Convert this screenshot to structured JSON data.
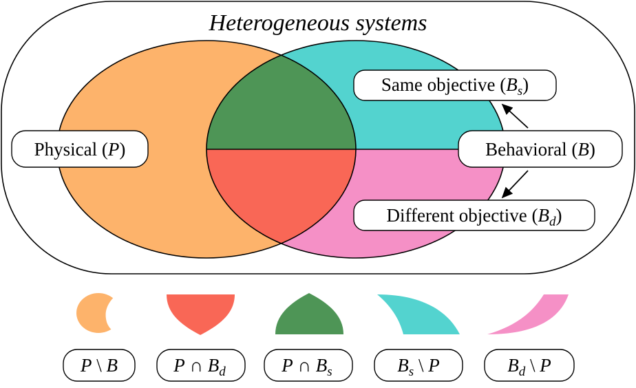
{
  "title": "Heterogeneous systems",
  "labels": {
    "physical": "Physical (",
    "physical_sym": "P",
    "physical_close": ")",
    "behavioral": "Behavioral (",
    "behavioral_sym": "B",
    "behavioral_close": ")",
    "same": "Same objective (",
    "same_sym": "B",
    "same_sub": "s",
    "same_close": ")",
    "different": "Different objective (",
    "different_sym": "B",
    "different_sub": "d",
    "different_close": ")"
  },
  "legend": [
    {
      "a": "P",
      "op": " \\ ",
      "b": "B",
      "sub": ""
    },
    {
      "a": "P",
      "op": " ∩ ",
      "b": "B",
      "sub": "d"
    },
    {
      "a": "P",
      "op": " ∩ ",
      "b": "B",
      "sub": "s"
    },
    {
      "a": "B",
      "asub": "s",
      "op": " \\ ",
      "b": "P"
    },
    {
      "a": "B",
      "asub": "d",
      "op": " \\ ",
      "b": "P"
    }
  ],
  "colors": {
    "physical_only": "#FDB36B",
    "intersect_different": "#F96756",
    "intersect_same": "#4E9556",
    "same_only": "#53D3CF",
    "different_only": "#F590C6"
  }
}
